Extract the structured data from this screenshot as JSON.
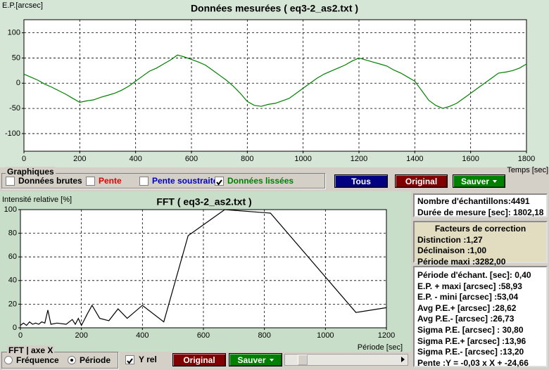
{
  "chart_data": [
    {
      "type": "line",
      "title": "Données mesurées ( eq3-2_as2.txt )",
      "y_label": "E.P.[arcsec]",
      "x_label": "Temps [sec]",
      "x": [
        0,
        25,
        50,
        75,
        100,
        125,
        150,
        175,
        200,
        225,
        250,
        275,
        300,
        325,
        350,
        375,
        400,
        425,
        450,
        475,
        500,
        525,
        550,
        575,
        600,
        625,
        650,
        675,
        700,
        725,
        750,
        775,
        800,
        825,
        850,
        875,
        900,
        925,
        950,
        975,
        1000,
        1025,
        1050,
        1075,
        1100,
        1125,
        1150,
        1175,
        1200,
        1225,
        1250,
        1275,
        1300,
        1325,
        1350,
        1375,
        1400,
        1425,
        1450,
        1475,
        1500,
        1525,
        1550,
        1575,
        1600,
        1625,
        1650,
        1675,
        1700,
        1725,
        1750,
        1775,
        1800
      ],
      "series": [
        {
          "color": "#008000",
          "values": [
            18,
            12,
            6,
            -2,
            -8,
            -15,
            -22,
            -30,
            -38,
            -35,
            -33,
            -28,
            -24,
            -20,
            -14,
            -6,
            4,
            14,
            24,
            30,
            38,
            46,
            56,
            52,
            47,
            42,
            36,
            26,
            16,
            6,
            -6,
            -20,
            -36,
            -44,
            -46,
            -42,
            -40,
            -35,
            -30,
            -20,
            -10,
            0,
            10,
            18,
            24,
            30,
            36,
            44,
            50,
            46,
            42,
            38,
            34,
            26,
            20,
            12,
            4,
            -15,
            -34,
            -44,
            -50,
            -46,
            -40,
            -30,
            -20,
            -10,
            0,
            10,
            20,
            22,
            25,
            30,
            38
          ]
        }
      ],
      "xlim": [
        0,
        1800
      ],
      "ylim": [
        -135,
        126
      ],
      "xticks": [
        0,
        200,
        400,
        600,
        800,
        1000,
        1200,
        1400,
        1600,
        1800
      ],
      "yticks": [
        -100,
        -50,
        0,
        50,
        100
      ],
      "grid": true
    },
    {
      "type": "line",
      "title": "FFT ( eq3-2_as2.txt )",
      "y_label": "Intensité relative [%]",
      "x_label": "Période [sec]",
      "x": [
        0,
        10,
        20,
        30,
        40,
        50,
        60,
        70,
        80,
        90,
        100,
        120,
        150,
        170,
        180,
        190,
        200,
        220,
        235,
        260,
        290,
        320,
        350,
        400,
        470,
        550,
        670,
        820,
        1100,
        1200
      ],
      "values": [
        2,
        4,
        2,
        5,
        3,
        4,
        3,
        5,
        4,
        15,
        3,
        4,
        3,
        7,
        3,
        8,
        2,
        12,
        19,
        8,
        6,
        16,
        8,
        19,
        5,
        78,
        100,
        97,
        13,
        17
      ],
      "color": "#000000",
      "xlim": [
        0,
        1200
      ],
      "ylim": [
        0,
        100
      ],
      "xticks": [
        0,
        200,
        400,
        600,
        800,
        1000,
        1200
      ],
      "yticks": [
        0,
        20,
        40,
        60,
        80,
        100
      ],
      "grid": true
    }
  ],
  "graphiques": {
    "title": "Graphiques",
    "options": [
      {
        "label": "Données brutes",
        "color": "#000000",
        "checked": false
      },
      {
        "label": "Pente",
        "color": "#e00000",
        "checked": false
      },
      {
        "label": "Pente soustraite",
        "color": "#0000c0",
        "checked": false
      },
      {
        "label": "Données lissées",
        "color": "#008000",
        "checked": true
      }
    ]
  },
  "top_buttons": [
    {
      "label": "Tous",
      "color": "#000080"
    },
    {
      "label": "Original",
      "color": "#800000"
    },
    {
      "label": "Sauver",
      "color": "#008000",
      "dropdown": true
    }
  ],
  "fft_axis": {
    "title": "FFT | axe X",
    "options": [
      {
        "label": "Fréquence",
        "checked": false
      },
      {
        "label": "Période",
        "checked": true
      }
    ]
  },
  "y_rel": {
    "label": "Y rel",
    "checked": true
  },
  "bottom_buttons": [
    {
      "label": "Original",
      "color": "#800000"
    },
    {
      "label": "Sauver",
      "color": "#008000",
      "dropdown": true
    }
  ],
  "stats": {
    "samples": [
      "Nombre d'échantillons:4491",
      "Durée de mesure [sec]: 1802,18"
    ],
    "correction": {
      "title": "Facteurs de correction",
      "lines": [
        "Distinction :1,27",
        "Déclinaison :1,00",
        "Période maxi :3282,00"
      ]
    },
    "results": [
      "Période d'échant. [sec]: 0,40",
      "E.P. + maxi [arcsec] :58,93",
      "E.P. - mini [arcsec] :53,04",
      "Avg P.E.+ [arcsec] :28,62",
      "Avg P.E.- [arcsec] :26,73",
      "Sigma P.E. [arcsec] : 30,80",
      "Sigma P.E.+ [arcsec] :13,96",
      "Sigma P.E.- [arcsec] :13,20",
      "Pente :Y = -0,03 x X + -24,66"
    ]
  }
}
